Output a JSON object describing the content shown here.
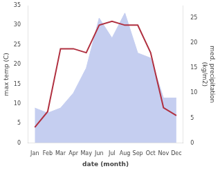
{
  "chart_data": {
    "type": "line",
    "categories": [
      "Jan",
      "Feb",
      "Mar",
      "Apr",
      "May",
      "Jun",
      "Jul",
      "Aug",
      "Sep",
      "Oct",
      "Nov",
      "Dec"
    ],
    "series": [
      {
        "type": "area",
        "color": "#c5cef0",
        "values": [
          7,
          6,
          7,
          10,
          15,
          25,
          21,
          26,
          18,
          17,
          9,
          9
        ],
        "axis": "y2"
      },
      {
        "type": "line",
        "color": "#b03040",
        "values": [
          4,
          8,
          24,
          24,
          23,
          30,
          31,
          30,
          30,
          23,
          9,
          7
        ]
      }
    ],
    "xlabel": "date (month)",
    "ylabel": "max temp (C)",
    "y2label": "med. precipitation\n(kg/m2)",
    "ylim": [
      0,
      35
    ],
    "yticks": [
      0,
      5,
      10,
      15,
      20,
      25,
      30,
      35
    ],
    "y2lim": [
      0,
      27.5
    ],
    "y2ticks": [
      0,
      5,
      10,
      15,
      20,
      25
    ],
    "grid": false
  }
}
